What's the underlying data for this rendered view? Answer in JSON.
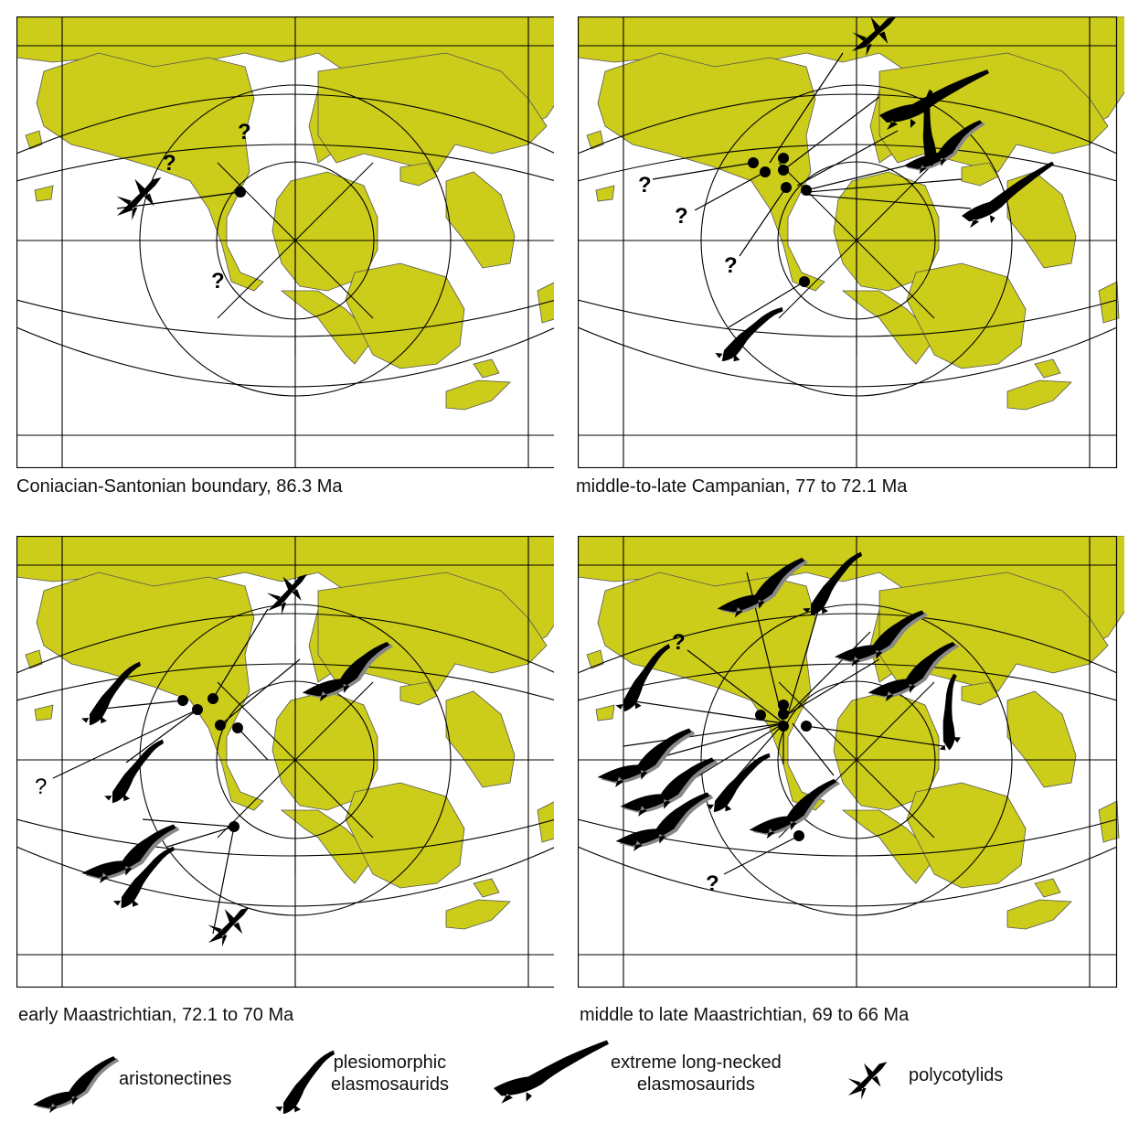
{
  "panels": [
    {
      "id": "p1",
      "caption": "Coniacian-Santonian boundary, 86.3 Ma"
    },
    {
      "id": "p2",
      "caption": "middle-to-late Campanian, 77 to 72.1 Ma"
    },
    {
      "id": "p3",
      "caption": "early Maastrichtian, 72.1 to 70 Ma"
    },
    {
      "id": "p4",
      "caption": "middle to late Maastrichtian, 69 to 66 Ma"
    }
  ],
  "unknown_marker": "?",
  "legend": {
    "aristonectines": "aristonectines",
    "plesiomorphic_line1": "plesiomorphic",
    "plesiomorphic_line2": "elasmosaurids",
    "extreme_line1": "extreme long-necked",
    "extreme_line2": "elasmosaurids",
    "polycotylids": "polycotylids"
  },
  "colors": {
    "land": "#cccc1a",
    "ocean": "#ffffff",
    "grid": "#000000",
    "silhouette": "#000000"
  }
}
